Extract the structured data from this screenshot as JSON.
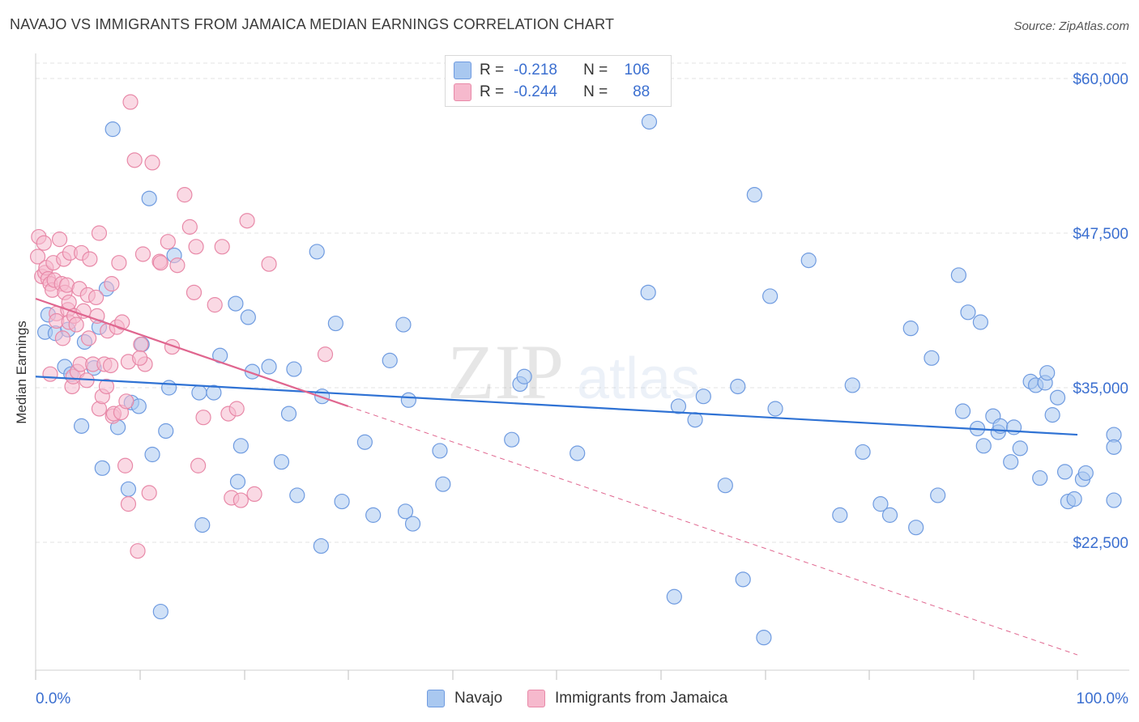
{
  "title": "NAVAJO VS IMMIGRANTS FROM JAMAICA MEDIAN EARNINGS CORRELATION CHART",
  "source": "Source: ZipAtlas.com",
  "watermark": {
    "zip": "ZIP",
    "atlas": "atlas"
  },
  "stats": [
    {
      "r_label": "R =",
      "r_value": "-0.218",
      "n_label": "N =",
      "n_value": "106",
      "color": "#a9c8f0",
      "border": "#6f9be0"
    },
    {
      "r_label": "R =",
      "r_value": "-0.244",
      "n_label": "N =",
      "n_value": "88",
      "color": "#f6b9cd",
      "border": "#e889a8"
    }
  ],
  "legend": [
    {
      "label": "Navajo",
      "color": "#a9c8f0",
      "border": "#6f9be0"
    },
    {
      "label": "Immigrants from Jamaica",
      "color": "#f6b9cd",
      "border": "#e889a8"
    }
  ],
  "chart_data": {
    "type": "scatter",
    "title": "NAVAJO VS IMMIGRANTS FROM JAMAICA MEDIAN EARNINGS CORRELATION CHART",
    "xlabel": "",
    "ylabel": "Median Earnings",
    "xlim": [
      0,
      100
    ],
    "ylim": [
      10000,
      62000
    ],
    "x_tick_labels": [
      "0.0%",
      "100.0%"
    ],
    "y_ticks": [
      22500,
      35000,
      47500,
      60000
    ],
    "y_tick_labels": [
      "$22,500",
      "$35,000",
      "$47,500",
      "$60,000"
    ],
    "grid": "horizontal dashed",
    "legend_position": "bottom",
    "series": [
      {
        "name": "Navajo",
        "color": "#6f9be0",
        "fill": "#a9c8f0",
        "trend": {
          "x0": 0,
          "y0": 35900,
          "x1": 100,
          "y1": 31200,
          "style": "solid",
          "color": "#2f72d4"
        },
        "points": [
          [
            0.9,
            39500
          ],
          [
            1.2,
            40900
          ],
          [
            1.9,
            39400
          ],
          [
            2.8,
            36700
          ],
          [
            3.1,
            39700
          ],
          [
            3.4,
            36100
          ],
          [
            4.4,
            31900
          ],
          [
            4.7,
            38700
          ],
          [
            5.6,
            36600
          ],
          [
            6.1,
            39900
          ],
          [
            6.8,
            43000
          ],
          [
            6.4,
            28500
          ],
          [
            7.4,
            55900
          ],
          [
            7.9,
            31800
          ],
          [
            8.9,
            26800
          ],
          [
            9.2,
            33800
          ],
          [
            9.9,
            33500
          ],
          [
            10.2,
            38500
          ],
          [
            10.9,
            50300
          ],
          [
            11.2,
            29600
          ],
          [
            12.0,
            16900
          ],
          [
            12.5,
            31500
          ],
          [
            12.8,
            35000
          ],
          [
            13.3,
            45700
          ],
          [
            15.7,
            34600
          ],
          [
            16.0,
            23900
          ],
          [
            17.1,
            34600
          ],
          [
            17.7,
            37600
          ],
          [
            19.2,
            41800
          ],
          [
            19.4,
            27400
          ],
          [
            19.7,
            30300
          ],
          [
            20.4,
            40700
          ],
          [
            20.8,
            36300
          ],
          [
            22.4,
            36700
          ],
          [
            23.6,
            29000
          ],
          [
            24.3,
            32900
          ],
          [
            24.8,
            36500
          ],
          [
            25.1,
            26300
          ],
          [
            27.0,
            46000
          ],
          [
            27.4,
            22200
          ],
          [
            27.5,
            34300
          ],
          [
            28.8,
            40200
          ],
          [
            29.4,
            25800
          ],
          [
            31.6,
            30600
          ],
          [
            32.4,
            24700
          ],
          [
            34.0,
            37200
          ],
          [
            35.3,
            40100
          ],
          [
            35.5,
            25000
          ],
          [
            35.8,
            34000
          ],
          [
            36.2,
            24000
          ],
          [
            38.8,
            29900
          ],
          [
            39.1,
            27200
          ],
          [
            45.7,
            30800
          ],
          [
            46.5,
            35300
          ],
          [
            46.9,
            35900
          ],
          [
            52.0,
            29700
          ],
          [
            58.8,
            42700
          ],
          [
            58.9,
            56500
          ],
          [
            61.3,
            18100
          ],
          [
            61.7,
            33500
          ],
          [
            63.3,
            32400
          ],
          [
            64.1,
            34300
          ],
          [
            66.2,
            27100
          ],
          [
            67.4,
            35100
          ],
          [
            67.9,
            19500
          ],
          [
            69.0,
            50600
          ],
          [
            69.9,
            14800
          ],
          [
            70.5,
            42400
          ],
          [
            71.0,
            33300
          ],
          [
            74.2,
            45300
          ],
          [
            77.2,
            24700
          ],
          [
            78.4,
            35200
          ],
          [
            79.4,
            29800
          ],
          [
            81.1,
            25600
          ],
          [
            82.0,
            24700
          ],
          [
            84.0,
            39800
          ],
          [
            84.5,
            23700
          ],
          [
            86.0,
            37400
          ],
          [
            86.6,
            26300
          ],
          [
            88.6,
            44100
          ],
          [
            89.0,
            33100
          ],
          [
            89.5,
            41100
          ],
          [
            90.4,
            31700
          ],
          [
            90.7,
            40300
          ],
          [
            91.0,
            30300
          ],
          [
            91.9,
            32700
          ],
          [
            92.4,
            31400
          ],
          [
            92.6,
            31900
          ],
          [
            93.6,
            29000
          ],
          [
            93.9,
            31800
          ],
          [
            94.5,
            30100
          ],
          [
            95.5,
            35500
          ],
          [
            96.0,
            35200
          ],
          [
            96.4,
            27700
          ],
          [
            96.9,
            35400
          ],
          [
            97.1,
            36200
          ],
          [
            97.6,
            32800
          ],
          [
            98.1,
            34200
          ],
          [
            98.8,
            28200
          ],
          [
            99.1,
            25800
          ],
          [
            99.7,
            26000
          ],
          [
            100.5,
            27600
          ],
          [
            100.8,
            28100
          ],
          [
            103.8,
            31200
          ],
          [
            104.2,
            30200
          ],
          [
            105.0,
            25900
          ]
        ]
      },
      {
        "name": "Immigrants from Jamaica",
        "color": "#e889a8",
        "fill": "#f6b9cd",
        "trend": {
          "x0": 0,
          "y0": 42200,
          "x1": 30,
          "y1": 33500,
          "dash_to_x": 100,
          "dash_to_y": 13400,
          "style": "solid+dashed",
          "color": "#e0668f"
        },
        "points": [
          [
            0.2,
            45600
          ],
          [
            0.3,
            47200
          ],
          [
            0.6,
            44000
          ],
          [
            0.8,
            46700
          ],
          [
            0.9,
            44300
          ],
          [
            1.0,
            44700
          ],
          [
            1.2,
            43800
          ],
          [
            1.4,
            43400
          ],
          [
            1.4,
            36100
          ],
          [
            1.6,
            42900
          ],
          [
            1.7,
            45100
          ],
          [
            1.8,
            43700
          ],
          [
            2.0,
            41000
          ],
          [
            2.0,
            40400
          ],
          [
            2.3,
            47000
          ],
          [
            2.5,
            43400
          ],
          [
            2.6,
            39000
          ],
          [
            2.7,
            45400
          ],
          [
            2.8,
            42700
          ],
          [
            3.0,
            43300
          ],
          [
            3.1,
            41300
          ],
          [
            3.2,
            41900
          ],
          [
            3.2,
            40300
          ],
          [
            3.3,
            45900
          ],
          [
            3.5,
            35100
          ],
          [
            3.6,
            35900
          ],
          [
            3.7,
            40800
          ],
          [
            3.9,
            40100
          ],
          [
            4.0,
            36300
          ],
          [
            4.2,
            43000
          ],
          [
            4.3,
            36900
          ],
          [
            4.4,
            45900
          ],
          [
            4.6,
            41200
          ],
          [
            4.9,
            35600
          ],
          [
            5.0,
            42500
          ],
          [
            5.1,
            39000
          ],
          [
            5.2,
            45400
          ],
          [
            5.5,
            36900
          ],
          [
            5.8,
            42300
          ],
          [
            5.9,
            40800
          ],
          [
            6.1,
            47500
          ],
          [
            6.1,
            33300
          ],
          [
            6.4,
            34300
          ],
          [
            6.6,
            36900
          ],
          [
            6.8,
            35100
          ],
          [
            6.9,
            39600
          ],
          [
            7.2,
            36800
          ],
          [
            7.3,
            43400
          ],
          [
            7.4,
            32700
          ],
          [
            7.5,
            32900
          ],
          [
            7.8,
            39900
          ],
          [
            8.0,
            45100
          ],
          [
            8.2,
            33000
          ],
          [
            8.6,
            28700
          ],
          [
            8.7,
            33900
          ],
          [
            8.9,
            25600
          ],
          [
            8.9,
            37100
          ],
          [
            9.1,
            58100
          ],
          [
            9.5,
            53400
          ],
          [
            9.8,
            21800
          ],
          [
            10.1,
            38500
          ],
          [
            10.3,
            45800
          ],
          [
            10.5,
            36900
          ],
          [
            10.9,
            26500
          ],
          [
            11.2,
            53200
          ],
          [
            11.9,
            45200
          ],
          [
            12.7,
            46800
          ],
          [
            13.6,
            44900
          ],
          [
            14.3,
            50600
          ],
          [
            14.8,
            48000
          ],
          [
            15.2,
            42700
          ],
          [
            15.4,
            46400
          ],
          [
            15.6,
            28700
          ],
          [
            16.1,
            32600
          ],
          [
            17.2,
            41700
          ],
          [
            17.9,
            46400
          ],
          [
            18.5,
            32900
          ],
          [
            18.8,
            26100
          ],
          [
            19.3,
            33300
          ],
          [
            19.7,
            25900
          ],
          [
            20.3,
            48500
          ],
          [
            21.0,
            26400
          ],
          [
            27.8,
            37700
          ],
          [
            22.4,
            45000
          ],
          [
            13.1,
            38300
          ],
          [
            8.3,
            40300
          ],
          [
            10.0,
            37400
          ],
          [
            12.0,
            45100
          ]
        ]
      }
    ]
  }
}
